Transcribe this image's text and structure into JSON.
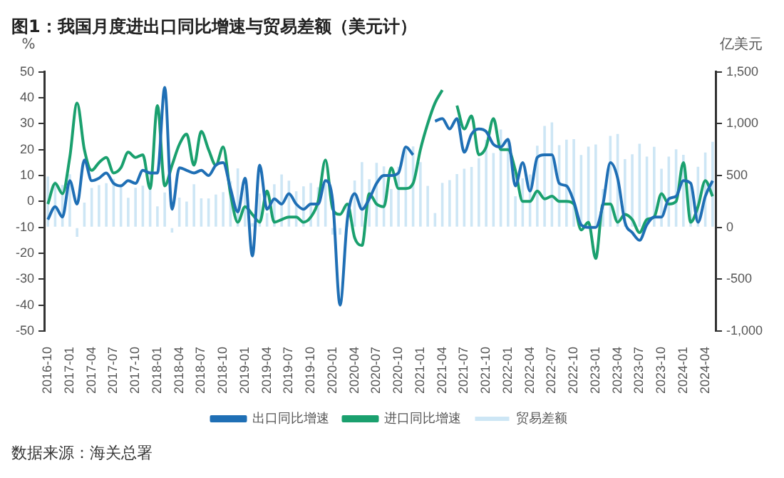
{
  "chart_data": {
    "type": "line",
    "title": "图1：我国月度进出口同比增速与贸易差额（美元计）",
    "ylabel": "%",
    "y2label": "亿美元",
    "annotations": [
      "数据来源：海关总署"
    ],
    "categories": [
      "2016-10",
      null,
      null,
      "2017-01",
      null,
      null,
      "2017-04",
      null,
      null,
      "2017-07",
      null,
      null,
      "2017-10",
      null,
      null,
      "2018-01",
      null,
      null,
      "2018-04",
      null,
      null,
      "2018-07",
      null,
      null,
      "2018-10",
      null,
      null,
      "2019-01",
      null,
      null,
      "2019-04",
      null,
      null,
      "2019-07",
      null,
      null,
      "2019-10",
      null,
      null,
      "2020-01",
      null,
      null,
      "2020-04",
      null,
      null,
      "2020-07",
      null,
      null,
      "2020-10",
      null,
      null,
      "2021-01",
      null,
      null,
      "2021-04",
      null,
      null,
      "2021-07",
      null,
      null,
      "2021-10",
      null,
      null,
      "2022-01",
      null,
      null,
      "2022-04",
      null,
      null,
      "2022-07",
      null,
      null,
      "2022-10",
      null,
      null,
      "2023-01",
      null,
      null,
      "2023-04",
      null,
      null,
      "2023-07",
      null,
      null,
      "2023-10",
      null,
      null,
      "2024-01",
      null,
      null,
      "2024-04",
      null
    ],
    "series": [
      {
        "name": "贸易差额",
        "type": "bar",
        "axis": "y2",
        "color": "#cde6f5",
        "values": [
          490,
          446,
          409,
          513,
          -91,
          239,
          380,
          408,
          427,
          467,
          419,
          285,
          381,
          402,
          547,
          203,
          337,
          -50,
          287,
          249,
          416,
          280,
          279,
          317,
          340,
          447,
          570,
          392,
          41,
          326,
          138,
          416,
          510,
          450,
          348,
          396,
          428,
          387,
          467,
          -70,
          -70,
          199,
          453,
          630,
          465,
          623,
          589,
          370,
          584,
          754,
          781,
          630,
          400,
          138,
          429,
          455,
          515,
          565,
          583,
          667,
          845,
          717,
          944,
          850,
          300,
          473,
          511,
          787,
          979,
          1013,
          793,
          847,
          852,
          699,
          780,
          800,
          370,
          882,
          902,
          658,
          706,
          806,
          683,
          777,
          565,
          683,
          753,
          700,
          400,
          585,
          723,
          826
        ]
      },
      {
        "name": "出口同比增速",
        "color": "#1f6fb5",
        "values": [
          -7,
          -2,
          -6,
          8,
          -1,
          16,
          8,
          9,
          11,
          7,
          6,
          8,
          7,
          12,
          11,
          11,
          44,
          -3,
          13,
          12,
          11,
          12,
          10,
          14,
          15,
          5,
          -4,
          9,
          -21,
          14,
          -3,
          1,
          -1,
          3,
          -1,
          -3,
          -1,
          -1,
          8,
          0,
          -40,
          -7,
          3,
          -3,
          1,
          7,
          10,
          10,
          11,
          21,
          18,
          null,
          null,
          31,
          32,
          28,
          32,
          19,
          26,
          28,
          27,
          22,
          21,
          24,
          6,
          15,
          4,
          17,
          18,
          18,
          7,
          6,
          0,
          -9,
          -10,
          -10,
          -1,
          15,
          9,
          -8,
          -12,
          -15,
          -9,
          -6,
          -6,
          1,
          2,
          8,
          7,
          -8,
          2,
          8
        ]
      },
      {
        "name": "进口同比增速",
        "color": "#1aa06e",
        "values": [
          -1,
          7,
          3,
          17,
          38,
          20,
          12,
          15,
          17,
          11,
          13,
          19,
          17,
          18,
          5,
          37,
          6,
          14,
          22,
          26,
          14,
          27,
          20,
          14,
          21,
          3,
          -8,
          -2,
          -5,
          -8,
          4,
          -8,
          -7,
          -6,
          -6,
          -8,
          -6,
          0,
          16,
          -3,
          -5,
          -1,
          -14,
          -17,
          3,
          -1,
          -2,
          13,
          5,
          5,
          7,
          20,
          30,
          38,
          43,
          null,
          37,
          28,
          33,
          18,
          21,
          32,
          20,
          20,
          12,
          0,
          0,
          4,
          1,
          2,
          0,
          0,
          -1,
          -11,
          -8,
          -22,
          -1,
          -1,
          -8,
          -5,
          -7,
          -12,
          -7,
          -6,
          3,
          -1,
          0,
          15,
          -8,
          -2,
          8,
          2
        ]
      }
    ],
    "ylim": [
      -50,
      50
    ],
    "yticks": [
      -50,
      -40,
      -30,
      -20,
      -10,
      0,
      10,
      20,
      30,
      40,
      50
    ],
    "y2lim": [
      -1000,
      1500
    ],
    "y2ticks": [
      {
        "value": -1000,
        "label": "-1,000"
      },
      -500,
      0,
      500,
      {
        "value": 1000,
        "label": "1,000"
      },
      {
        "value": 1500,
        "label": "1,500"
      }
    ],
    "grid": false,
    "legend": "bottom",
    "marker": "none",
    "line_style": "solid"
  }
}
